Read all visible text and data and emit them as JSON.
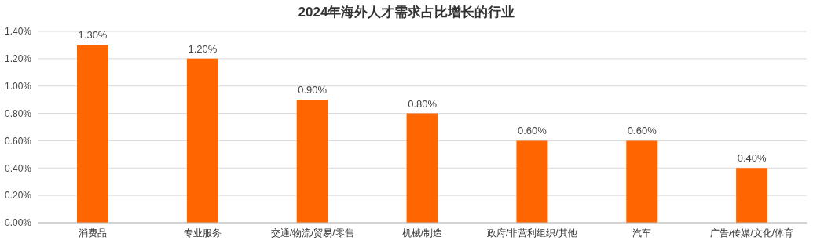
{
  "chart_data": {
    "type": "bar",
    "title": "2024年海外人才需求占比增长的行业",
    "categories": [
      "消费品",
      "专业服务",
      "交通/物流/贸易/零售",
      "机械/制造",
      "政府/非营利组织/其他",
      "汽车",
      "广告/传媒/文化/体育"
    ],
    "values": [
      1.3,
      1.2,
      0.9,
      0.8,
      0.6,
      0.6,
      0.4
    ],
    "value_labels": [
      "1.30%",
      "1.20%",
      "0.90%",
      "0.80%",
      "0.60%",
      "0.60%",
      "0.40%"
    ],
    "color": "#ff6600",
    "ylim": [
      0,
      1.4
    ],
    "yticks": [
      {
        "value": 0,
        "label": "0.00%"
      },
      {
        "value": 0.2,
        "label": "0.20%"
      },
      {
        "value": 0.4,
        "label": "0.40%"
      },
      {
        "value": 0.6,
        "label": "0.60%"
      },
      {
        "value": 0.8,
        "label": "0.80%"
      },
      {
        "value": 1.0,
        "label": "1.00%"
      },
      {
        "value": 1.2,
        "label": "1.20%"
      },
      {
        "value": 1.4,
        "label": "1.40%"
      }
    ],
    "grid": "y",
    "legend": false
  }
}
